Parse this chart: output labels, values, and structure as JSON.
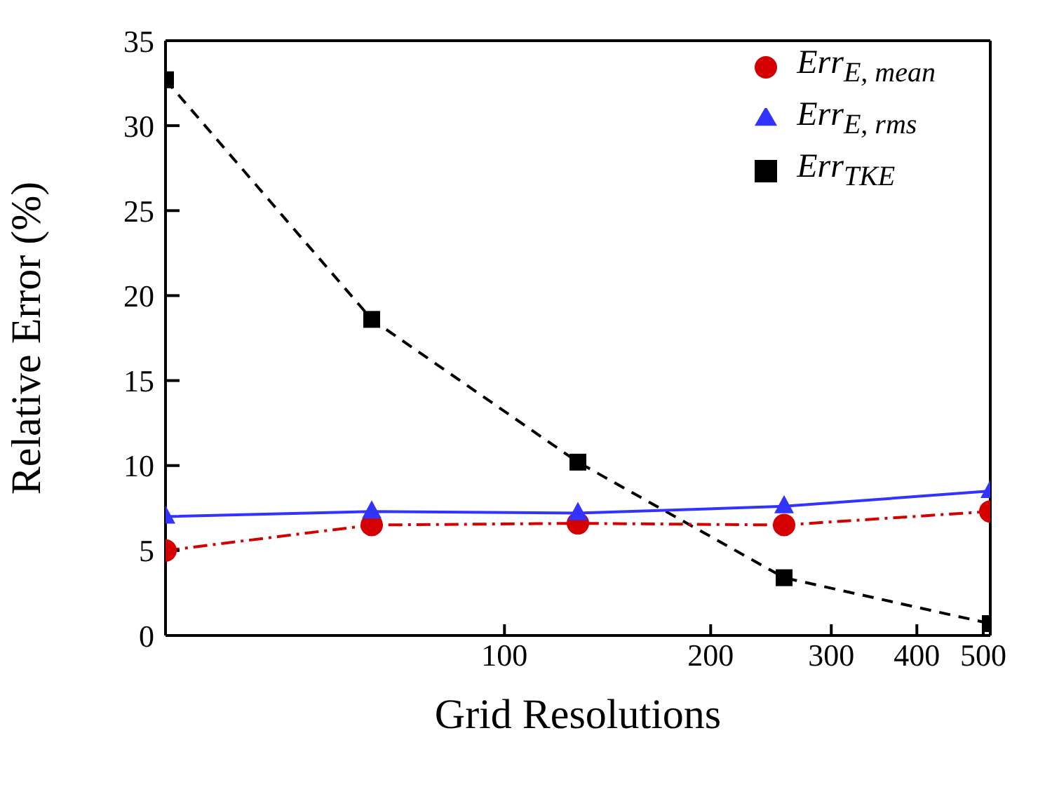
{
  "chart_data": {
    "type": "line",
    "xlabel": "Grid Resolutions",
    "ylabel": "Relative Error (%)",
    "x": [
      32,
      64,
      128,
      256,
      512
    ],
    "xlim": [
      32,
      512
    ],
    "xticks": [
      100,
      200,
      300,
      400,
      500
    ],
    "log": "x",
    "ylim": [
      0,
      35
    ],
    "yticks": [
      0,
      5,
      10,
      15,
      20,
      25,
      30,
      35
    ],
    "grid": false,
    "legend": "top right",
    "series": [
      {
        "name": "Err$_{TKE}$",
        "color": "#000000",
        "marker": "square",
        "line_style": "dashed",
        "values": [
          32.7,
          18.6,
          10.2,
          3.4,
          0.7
        ]
      },
      {
        "name": "Err$_{E, mean}$",
        "color": "#d40000",
        "marker": "circle",
        "line_style": "dashdot",
        "values": [
          5.0,
          6.5,
          6.6,
          6.5,
          7.3
        ]
      },
      {
        "name": "Err$_{E, rms}$",
        "color": "#3333ff",
        "marker": "triangle",
        "line_style": "solid",
        "values": [
          7.0,
          7.3,
          7.2,
          7.6,
          8.5
        ]
      }
    ]
  }
}
